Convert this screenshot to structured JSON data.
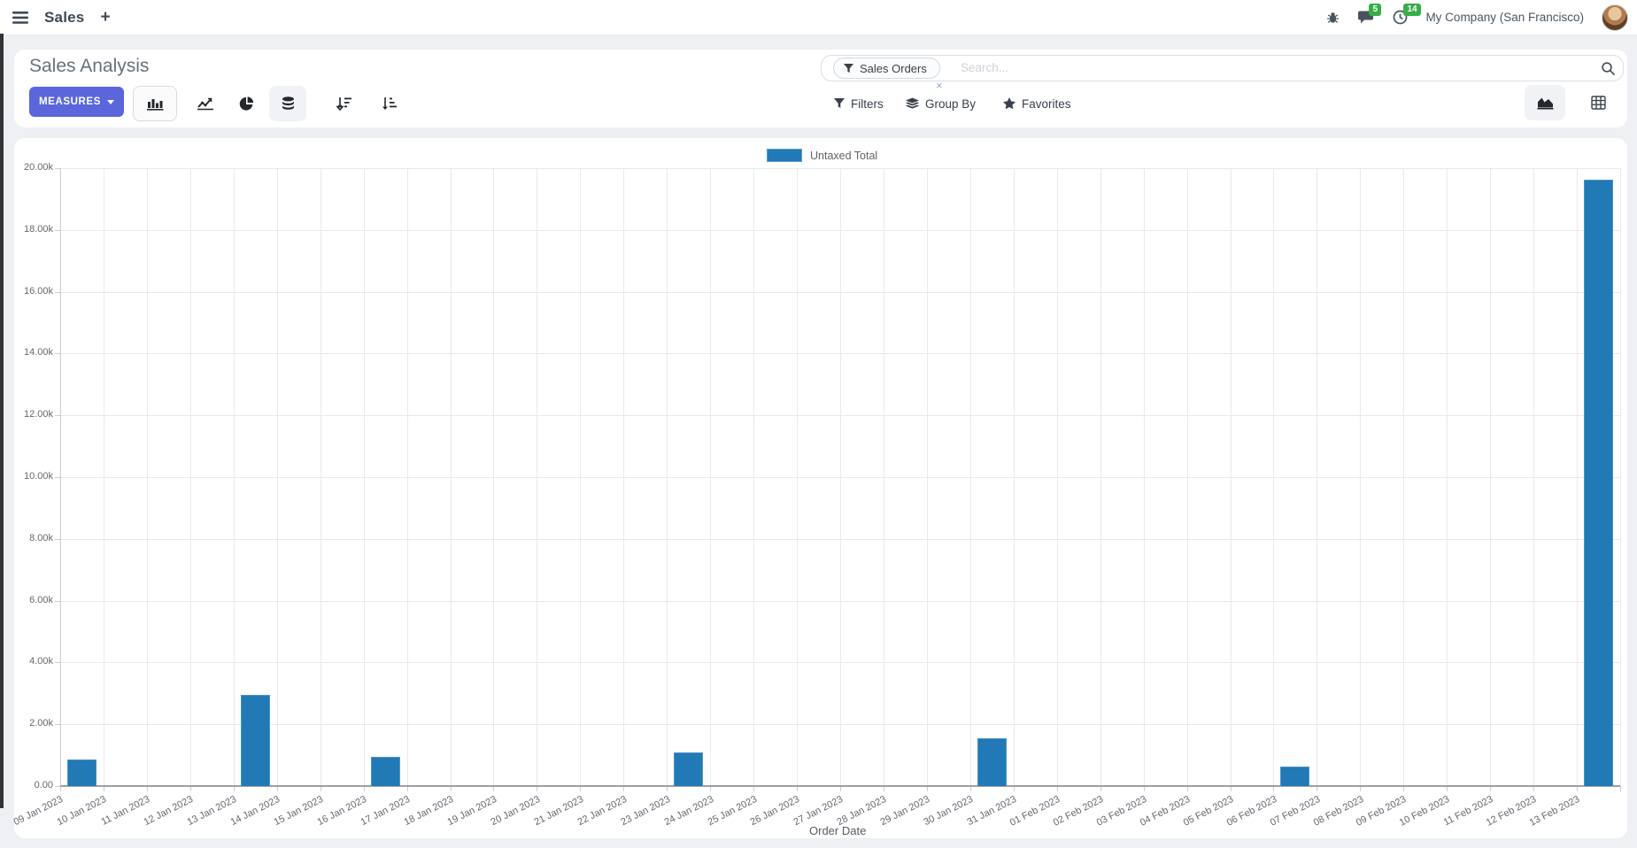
{
  "navbar": {
    "app_menu_label": "Sales",
    "new_label": "+",
    "chat_badge": "5",
    "activity_badge": "14",
    "company": "My Company (San Francisco)"
  },
  "control_panel": {
    "title": "Sales Analysis",
    "measures_label": "MEASURES",
    "filters_label": "Filters",
    "group_by_label": "Group By",
    "favorites_label": "Favorites"
  },
  "search": {
    "facet_label": "Sales Orders",
    "remove_facet": "×",
    "placeholder": "Search..."
  },
  "colors": {
    "bar": "#2179b5",
    "primary_button": "#5a66da",
    "badge_green": "#37ae47"
  },
  "chart_data": {
    "type": "bar",
    "legend_position": "top",
    "grid": true,
    "xlabel": "Order Date",
    "ylabel": "",
    "ylim": [
      0,
      20000
    ],
    "ytick_step": 2000,
    "ytick_labels": [
      "0.00",
      "2.00k",
      "4.00k",
      "6.00k",
      "8.00k",
      "10.00k",
      "12.00k",
      "14.00k",
      "16.00k",
      "18.00k",
      "20.00k"
    ],
    "categories": [
      "09 Jan 2023",
      "10 Jan 2023",
      "11 Jan 2023",
      "12 Jan 2023",
      "13 Jan 2023",
      "14 Jan 2023",
      "15 Jan 2023",
      "16 Jan 2023",
      "17 Jan 2023",
      "18 Jan 2023",
      "19 Jan 2023",
      "20 Jan 2023",
      "21 Jan 2023",
      "22 Jan 2023",
      "23 Jan 2023",
      "24 Jan 2023",
      "25 Jan 2023",
      "26 Jan 2023",
      "27 Jan 2023",
      "28 Jan 2023",
      "29 Jan 2023",
      "30 Jan 2023",
      "31 Jan 2023",
      "01 Feb 2023",
      "02 Feb 2023",
      "03 Feb 2023",
      "04 Feb 2023",
      "05 Feb 2023",
      "06 Feb 2023",
      "07 Feb 2023",
      "08 Feb 2023",
      "09 Feb 2023",
      "10 Feb 2023",
      "11 Feb 2023",
      "12 Feb 2023",
      "13 Feb 2023"
    ],
    "series": [
      {
        "name": "Untaxed Total",
        "color": "#2179b5",
        "values": [
          860,
          0,
          0,
          0,
          2950,
          0,
          0,
          950,
          0,
          0,
          0,
          0,
          0,
          0,
          1090,
          0,
          0,
          0,
          0,
          0,
          0,
          1550,
          0,
          0,
          0,
          0,
          0,
          0,
          640,
          0,
          0,
          0,
          0,
          0,
          0,
          19620
        ]
      }
    ]
  }
}
